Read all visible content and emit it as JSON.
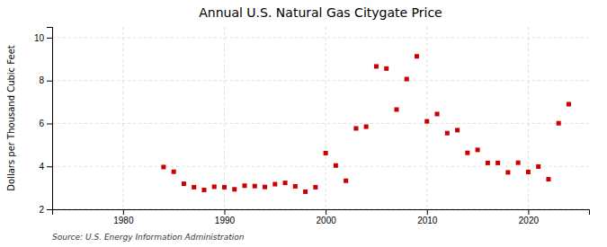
{
  "chart_data": {
    "type": "scatter",
    "title": "Annual U.S. Natural Gas Citygate Price",
    "ylabel": "Dollars per Thousand Cubic Feet",
    "source": "Source: U.S. Energy Information Administration",
    "x": [
      1984,
      1985,
      1986,
      1987,
      1988,
      1989,
      1990,
      1991,
      1992,
      1993,
      1994,
      1995,
      1996,
      1997,
      1998,
      1999,
      2000,
      2001,
      2002,
      2003,
      2004,
      2005,
      2006,
      2007,
      2008,
      2009,
      2010,
      2011,
      2012,
      2013,
      2014,
      2015,
      2016,
      2017,
      2018,
      2019,
      2020,
      2021,
      2022,
      2023,
      2024
    ],
    "values": [
      3.97,
      3.75,
      3.19,
      3.03,
      2.9,
      3.05,
      3.03,
      2.93,
      3.1,
      3.08,
      3.04,
      3.17,
      3.23,
      3.07,
      2.82,
      3.03,
      4.62,
      4.04,
      3.33,
      5.77,
      5.85,
      8.66,
      8.56,
      6.65,
      8.07,
      9.13,
      6.1,
      6.44,
      5.55,
      5.69,
      4.63,
      4.77,
      4.16,
      4.16,
      3.72,
      4.17,
      3.74,
      3.99,
      3.4,
      6.01,
      6.9
    ],
    "color": "#cc0000",
    "marker": "square",
    "xlim": [
      1973,
      2026
    ],
    "ylim": [
      2,
      10.5
    ],
    "xticks": [
      1980,
      1990,
      2000,
      2010,
      2020
    ],
    "yticks": [
      2,
      4,
      6,
      8,
      10
    ],
    "grid": true
  }
}
